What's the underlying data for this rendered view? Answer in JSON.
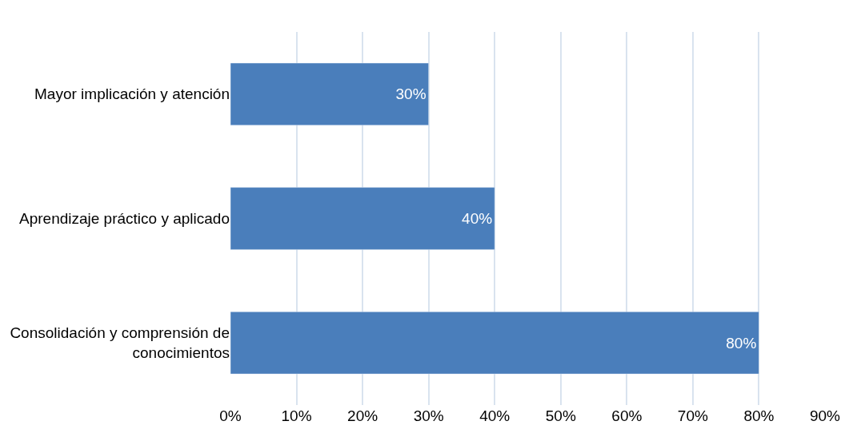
{
  "chart_data": {
    "type": "bar",
    "orientation": "horizontal",
    "categories": [
      "Mayor implicación y atención",
      "Aprendizaje práctico y aplicado",
      "Consolidación y comprensión de\nconocimientos"
    ],
    "values": [
      30,
      40,
      80
    ],
    "value_labels": [
      "30%",
      "40%",
      "80%"
    ],
    "color": "#4a7ebb",
    "xlim": [
      0,
      90
    ],
    "xticks": [
      {
        "value": 0,
        "label": "0%"
      },
      {
        "value": 10,
        "label": "10%"
      },
      {
        "value": 20,
        "label": "20%"
      },
      {
        "value": 30,
        "label": "30%"
      },
      {
        "value": 40,
        "label": "40%"
      },
      {
        "value": 50,
        "label": "50%"
      },
      {
        "value": 60,
        "label": "60%"
      },
      {
        "value": 70,
        "label": "70%"
      },
      {
        "value": 80,
        "label": "80%"
      },
      {
        "value": 90,
        "label": "90%"
      }
    ],
    "grid": "x",
    "legend": false
  }
}
